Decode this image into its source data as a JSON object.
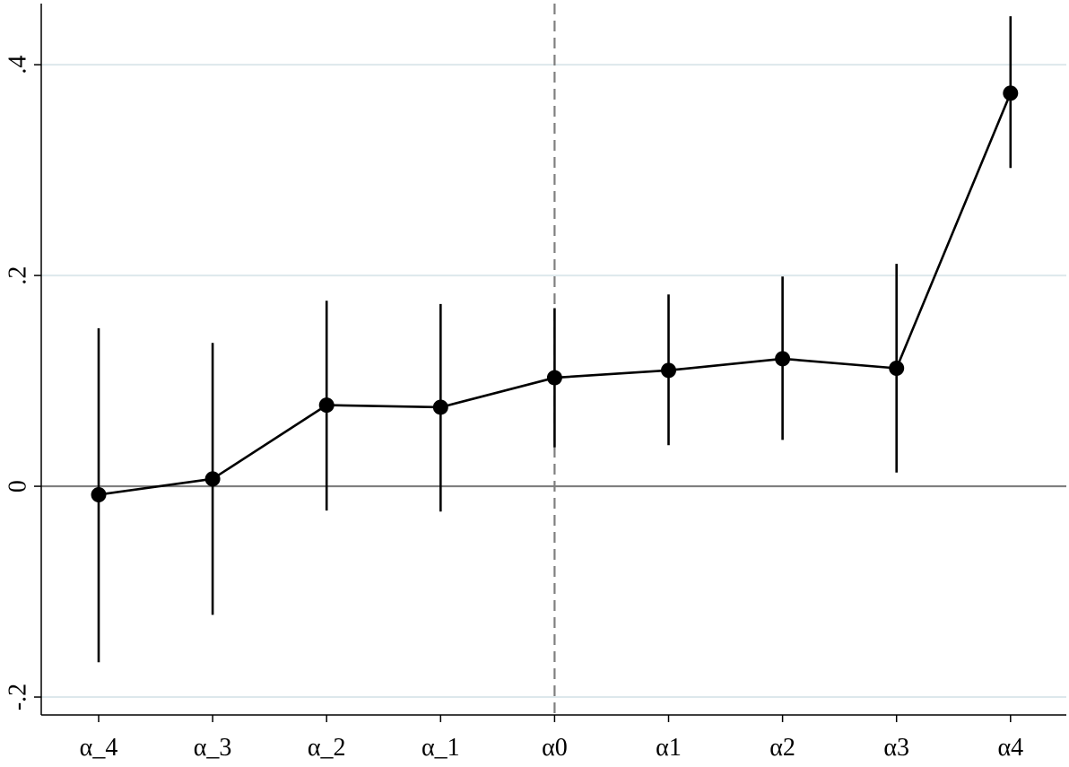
{
  "chart_data": {
    "type": "line",
    "title": "",
    "xlabel": "",
    "ylabel": "",
    "categories": [
      "α_4",
      "α_3",
      "α_2",
      "α_1",
      "α0",
      "α1",
      "α2",
      "α3",
      "α4"
    ],
    "series": [
      {
        "values": [
          -0.008,
          0.007,
          0.077,
          0.075,
          0.103,
          0.11,
          0.121,
          0.112,
          0.373
        ],
        "ci_lower": [
          -0.167,
          -0.122,
          -0.023,
          -0.024,
          0.037,
          0.039,
          0.044,
          0.013,
          0.302
        ],
        "ci_upper": [
          0.15,
          0.136,
          0.176,
          0.173,
          0.169,
          0.182,
          0.199,
          0.211,
          0.446
        ]
      }
    ],
    "ylim": [
      -0.217,
      0.458
    ],
    "yticks": [
      -0.2,
      0,
      0.2,
      0.4
    ],
    "ytick_labels": [
      "-.2",
      "0",
      ".2",
      ".4"
    ],
    "reference_lines": {
      "y": 0,
      "x_category": "α0"
    },
    "grid": "horizontal",
    "legend": "none",
    "colors": {
      "line": "#000000",
      "grid": "#dde8ec",
      "zero_line": "#7f7f7f",
      "reference_dash": "#7f7f7f"
    }
  }
}
